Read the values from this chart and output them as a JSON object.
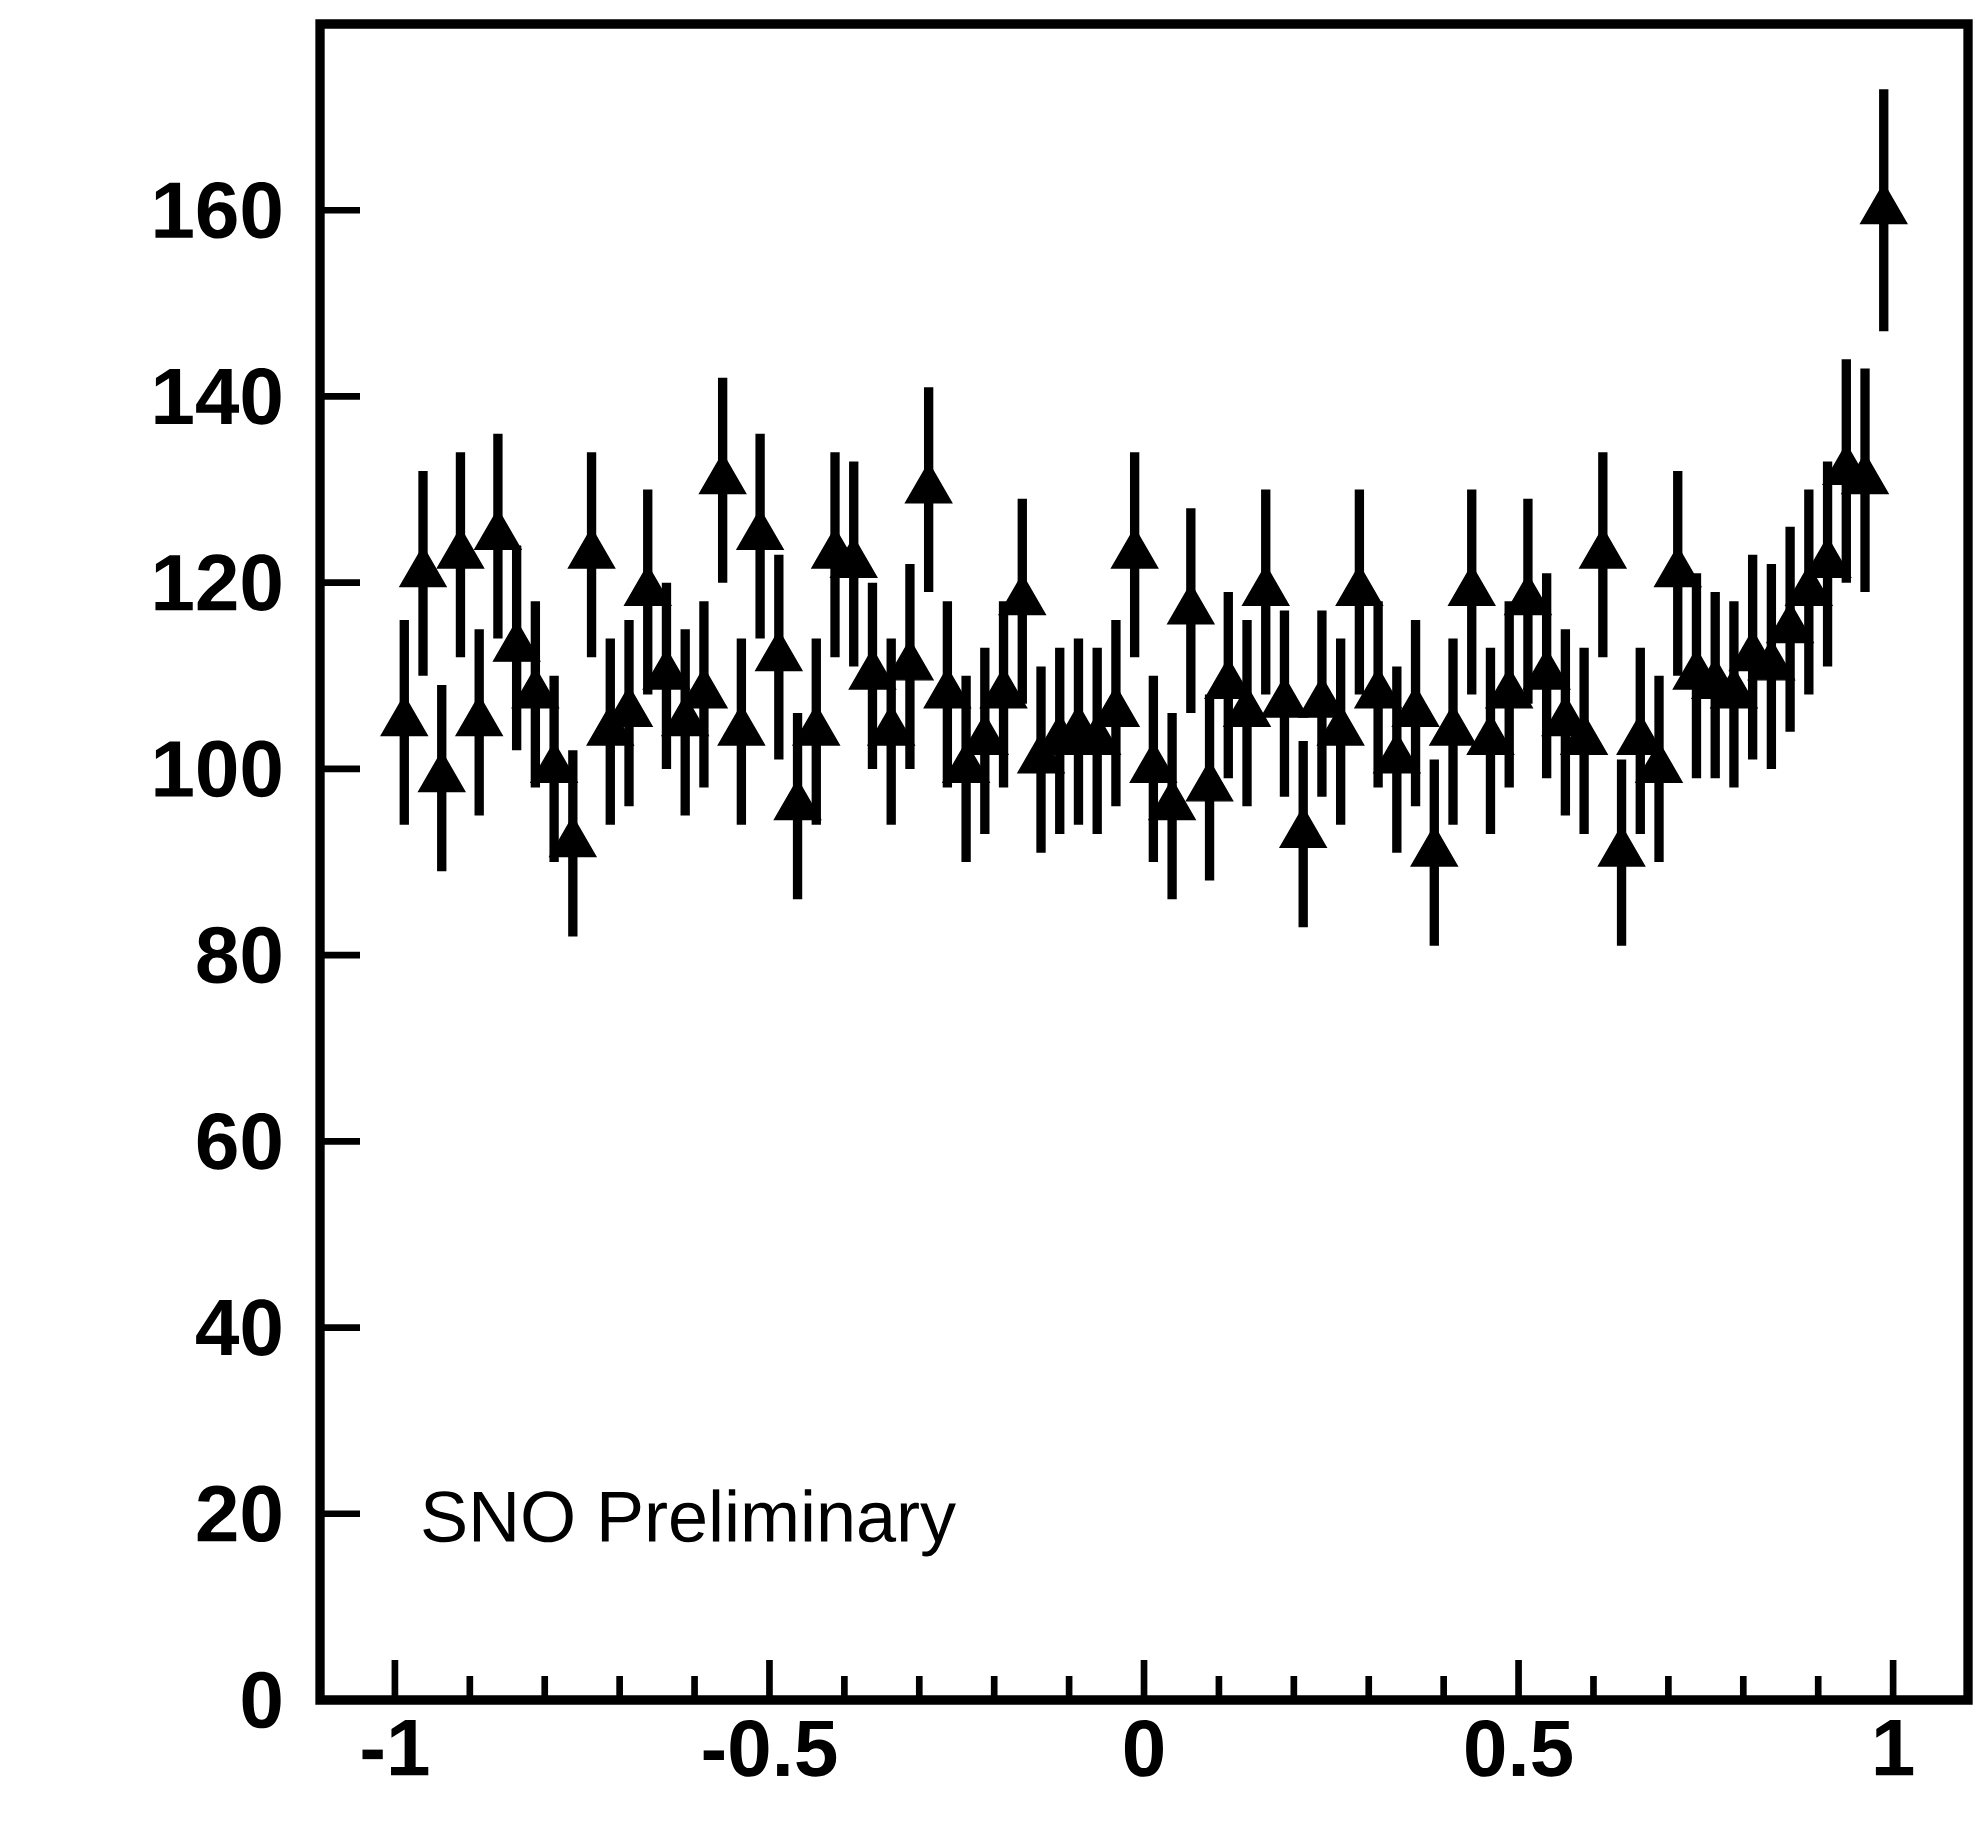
{
  "chart_data": {
    "type": "scatter",
    "x": [
      -0.9875,
      -0.9625,
      -0.9375,
      -0.9125,
      -0.8875,
      -0.8625,
      -0.8375,
      -0.8125,
      -0.7875,
      -0.7625,
      -0.7375,
      -0.7125,
      -0.6875,
      -0.6625,
      -0.6375,
      -0.6125,
      -0.5875,
      -0.5625,
      -0.5375,
      -0.5125,
      -0.4875,
      -0.4625,
      -0.4375,
      -0.4125,
      -0.3875,
      -0.3625,
      -0.3375,
      -0.3125,
      -0.2875,
      -0.2625,
      -0.2375,
      -0.2125,
      -0.1875,
      -0.1625,
      -0.1375,
      -0.1125,
      -0.0875,
      -0.0625,
      -0.0375,
      -0.0125,
      0.0125,
      0.0375,
      0.0625,
      0.0875,
      0.1125,
      0.1375,
      0.1625,
      0.1875,
      0.2125,
      0.2375,
      0.2625,
      0.2875,
      0.3125,
      0.3375,
      0.3625,
      0.3875,
      0.4125,
      0.4375,
      0.4625,
      0.4875,
      0.5125,
      0.5375,
      0.5625,
      0.5875,
      0.6125,
      0.6375,
      0.6625,
      0.6875,
      0.7125,
      0.7375,
      0.7625,
      0.7875,
      0.8125,
      0.8375,
      0.8625,
      0.8875,
      0.9125,
      0.9375,
      0.9625,
      0.9875
    ],
    "series": [
      {
        "color": "#000000",
        "values": [
          105,
          121,
          99,
          123,
          105,
          125,
          113,
          108,
          100,
          92,
          123,
          104,
          106,
          119,
          110,
          105,
          108,
          131,
          104,
          125,
          112,
          96,
          104,
          123,
          122,
          110,
          104,
          111,
          130,
          108,
          100,
          103,
          108,
          118,
          101,
          103,
          104,
          103,
          106,
          123,
          100,
          96,
          117,
          98,
          109,
          106,
          119,
          107,
          93,
          107,
          104,
          119,
          108,
          101,
          106,
          91,
          104,
          119,
          103,
          108,
          118,
          110,
          105,
          103,
          123,
          91,
          103,
          100,
          121,
          110,
          109,
          108,
          112,
          111,
          115,
          119,
          122,
          132,
          131,
          160
        ],
        "errors": [
          11,
          11,
          10,
          11,
          10,
          11,
          11,
          10,
          10,
          10,
          11,
          10,
          10,
          11,
          10,
          10,
          10,
          11,
          10,
          11,
          11,
          10,
          10,
          11,
          11,
          10,
          10,
          11,
          11,
          10,
          10,
          10,
          10,
          11,
          10,
          10,
          10,
          10,
          10,
          11,
          10,
          10,
          11,
          10,
          10,
          10,
          11,
          10,
          10,
          10,
          10,
          11,
          10,
          10,
          10,
          10,
          10,
          11,
          10,
          10,
          11,
          11,
          10,
          10,
          11,
          10,
          10,
          10,
          11,
          11,
          10,
          10,
          11,
          11,
          11,
          11,
          11,
          12,
          12,
          13
        ]
      }
    ],
    "xlim": [
      -1.1,
      1.1
    ],
    "ylim": [
      0,
      180
    ],
    "xticks": [
      -1,
      -0.5,
      0,
      0.5,
      1
    ],
    "yticks": [
      0,
      20,
      40,
      60,
      80,
      100,
      120,
      140,
      160
    ],
    "marker": "triangle",
    "annotations": [
      "SNO Preliminary"
    ]
  }
}
